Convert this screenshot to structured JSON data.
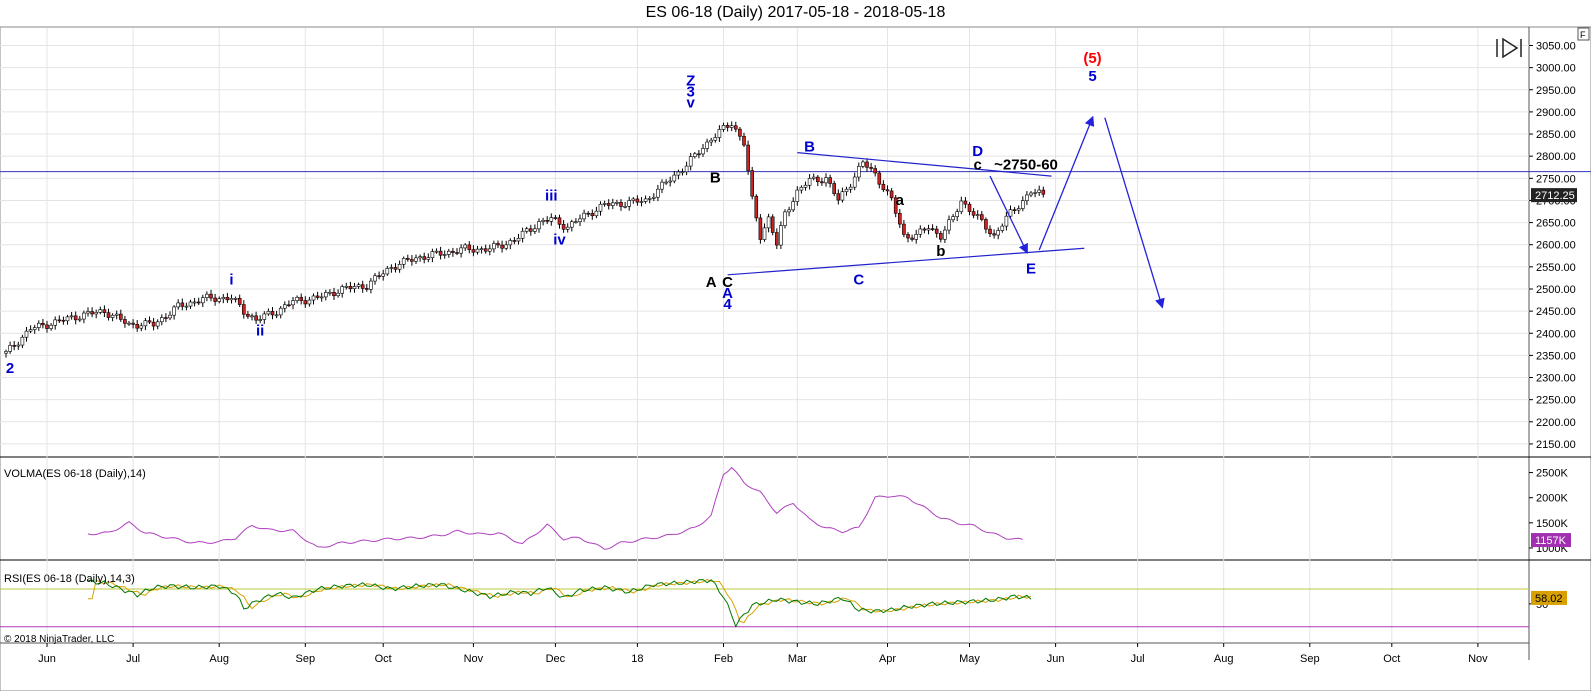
{
  "chart_data": [
    {
      "type": "candlestick",
      "title": "ES 06-18 (Daily)  2017-05-18 - 2018-05-18",
      "ylim": [
        2125,
        3085
      ],
      "y_ticks": [
        2150,
        2200,
        2250,
        2300,
        2350,
        2400,
        2450,
        2500,
        2550,
        2600,
        2650,
        2700,
        2750,
        2800,
        2850,
        2900,
        2950,
        3000,
        3050
      ],
      "y_tick_labels": [
        "2150.00",
        "2200.00",
        "2250.00",
        "2300.00",
        "2350.00",
        "2400.00",
        "2450.00",
        "2500.00",
        "2550.00",
        "2600.00",
        "2650.00",
        "2700.00",
        "2750.00",
        "2800.00",
        "2850.00",
        "2900.00",
        "2950.00",
        "3000.00",
        "3050.00"
      ],
      "x_tick_labels": [
        "Jun",
        "Jul",
        "Aug",
        "Sep",
        "Oct",
        "Nov",
        "Dec",
        "18",
        "Feb",
        "Mar",
        "Apr",
        "May",
        "Jun",
        "Jul",
        "Aug",
        "Sep",
        "Oct",
        "Nov"
      ],
      "x_tick_day_index": [
        10,
        31,
        52,
        73,
        92,
        114,
        134,
        154,
        175,
        193,
        215,
        235,
        256,
        276,
        297,
        318,
        338,
        359
      ],
      "last_price_label": "2712.25",
      "horizontal_line": 2765,
      "close_path_anchors": [
        [
          0,
          2355
        ],
        [
          6,
          2410
        ],
        [
          12,
          2425
        ],
        [
          18,
          2440
        ],
        [
          24,
          2450
        ],
        [
          30,
          2420
        ],
        [
          36,
          2420
        ],
        [
          42,
          2460
        ],
        [
          48,
          2478
        ],
        [
          55,
          2480
        ],
        [
          58,
          2450
        ],
        [
          61,
          2430
        ],
        [
          66,
          2450
        ],
        [
          70,
          2472
        ],
        [
          76,
          2480
        ],
        [
          82,
          2500
        ],
        [
          88,
          2508
        ],
        [
          94,
          2550
        ],
        [
          100,
          2570
        ],
        [
          106,
          2580
        ],
        [
          112,
          2590
        ],
        [
          118,
          2590
        ],
        [
          124,
          2610
        ],
        [
          130,
          2650
        ],
        [
          133,
          2658
        ],
        [
          137,
          2640
        ],
        [
          141,
          2665
        ],
        [
          146,
          2690
        ],
        [
          152,
          2695
        ],
        [
          156,
          2700
        ],
        [
          161,
          2740
        ],
        [
          166,
          2780
        ],
        [
          172,
          2840
        ],
        [
          177,
          2875
        ],
        [
          180,
          2830
        ],
        [
          182,
          2700
        ],
        [
          184,
          2620
        ],
        [
          186,
          2660
        ],
        [
          188,
          2600
        ],
        [
          190,
          2670
        ],
        [
          193,
          2720
        ],
        [
          196,
          2745
        ],
        [
          200,
          2750
        ],
        [
          203,
          2700
        ],
        [
          206,
          2740
        ],
        [
          209,
          2785
        ],
        [
          212,
          2760
        ],
        [
          216,
          2700
        ],
        [
          219,
          2620
        ],
        [
          222,
          2620
        ],
        [
          225,
          2640
        ],
        [
          228,
          2620
        ],
        [
          231,
          2660
        ],
        [
          233,
          2700
        ],
        [
          236,
          2670
        ],
        [
          239,
          2640
        ],
        [
          241,
          2620
        ],
        [
          244,
          2660
        ],
        [
          247,
          2690
        ],
        [
          250,
          2720
        ],
        [
          253,
          2712
        ]
      ],
      "annotations": [
        {
          "text": "2",
          "day": 1,
          "price": 2310,
          "color": "#0000cc"
        },
        {
          "text": "i",
          "day": 55,
          "price": 2510,
          "color": "#0000cc"
        },
        {
          "text": "ii",
          "day": 62,
          "price": 2395,
          "color": "#0000cc"
        },
        {
          "text": "iii",
          "day": 133,
          "price": 2700,
          "color": "#0000cc"
        },
        {
          "text": "iv",
          "day": 135,
          "price": 2600,
          "color": "#0000cc"
        },
        {
          "text": "Z",
          "day": 167,
          "price": 2960,
          "color": "#0000cc"
        },
        {
          "text": "3",
          "day": 167,
          "price": 2935,
          "color": "#0000cc"
        },
        {
          "text": "v",
          "day": 167,
          "price": 2910,
          "color": "#0000cc"
        },
        {
          "text": "B",
          "day": 173,
          "price": 2740,
          "color": "#000000"
        },
        {
          "text": "A",
          "day": 172,
          "price": 2505,
          "color": "#000000"
        },
        {
          "text": "C",
          "day": 176,
          "price": 2505,
          "color": "#000000"
        },
        {
          "text": "A",
          "day": 176,
          "price": 2480,
          "color": "#0000cc"
        },
        {
          "text": "4",
          "day": 176,
          "price": 2455,
          "color": "#0000cc"
        },
        {
          "text": "B",
          "day": 196,
          "price": 2810,
          "color": "#0000cc"
        },
        {
          "text": "C",
          "day": 208,
          "price": 2510,
          "color": "#0000cc"
        },
        {
          "text": "a",
          "day": 218,
          "price": 2690,
          "color": "#000000"
        },
        {
          "text": "b",
          "day": 228,
          "price": 2575,
          "color": "#000000"
        },
        {
          "text": "D",
          "day": 237,
          "price": 2800,
          "color": "#0000cc"
        },
        {
          "text": "c",
          "day": 237,
          "price": 2770,
          "color": "#000000"
        },
        {
          "text": "~2750-60",
          "day": 241,
          "price": 2770,
          "color": "#000000"
        },
        {
          "text": "E",
          "day": 250,
          "price": 2535,
          "color": "#0000cc"
        },
        {
          "text": "(5)",
          "day": 265,
          "price": 3010,
          "color": "#ff0000"
        },
        {
          "text": "5",
          "day": 265,
          "price": 2970,
          "color": "#0000cc"
        }
      ],
      "trendlines": [
        {
          "from": [
            176,
            2532
          ],
          "to": [
            263,
            2592
          ]
        },
        {
          "from": [
            193,
            2808
          ],
          "to": [
            255,
            2755
          ]
        }
      ],
      "arrows": [
        {
          "from": [
            240,
            2755
          ],
          "to": [
            249,
            2583
          ]
        },
        {
          "from": [
            252,
            2588
          ],
          "to": [
            265,
            2887
          ]
        },
        {
          "from": [
            268,
            2887
          ],
          "to": [
            282,
            2460
          ]
        }
      ]
    },
    {
      "type": "line",
      "title": "VOLMA(ES 06-18 (Daily),14)",
      "ylim": [
        800,
        2750
      ],
      "y_ticks": [
        1000,
        1500,
        2000,
        2500
      ],
      "y_tick_labels": [
        "1000K",
        "1500K",
        "2000K",
        "2500K"
      ],
      "last_value_label": "1157K",
      "line_color": "#b040c0",
      "anchors": [
        [
          20,
          1280
        ],
        [
          25,
          1300
        ],
        [
          30,
          1500
        ],
        [
          34,
          1300
        ],
        [
          40,
          1200
        ],
        [
          46,
          1100
        ],
        [
          52,
          1120
        ],
        [
          56,
          1200
        ],
        [
          60,
          1450
        ],
        [
          64,
          1360
        ],
        [
          70,
          1340
        ],
        [
          76,
          1000
        ],
        [
          82,
          1100
        ],
        [
          88,
          1140
        ],
        [
          94,
          1180
        ],
        [
          100,
          1200
        ],
        [
          106,
          1250
        ],
        [
          110,
          1330
        ],
        [
          116,
          1270
        ],
        [
          120,
          1300
        ],
        [
          126,
          1080
        ],
        [
          132,
          1460
        ],
        [
          136,
          1180
        ],
        [
          140,
          1200
        ],
        [
          146,
          980
        ],
        [
          150,
          1100
        ],
        [
          156,
          1180
        ],
        [
          162,
          1250
        ],
        [
          168,
          1400
        ],
        [
          172,
          1640
        ],
        [
          175,
          2480
        ],
        [
          177,
          2600
        ],
        [
          180,
          2300
        ],
        [
          184,
          2100
        ],
        [
          188,
          1700
        ],
        [
          192,
          1900
        ],
        [
          196,
          1560
        ],
        [
          200,
          1400
        ],
        [
          204,
          1330
        ],
        [
          208,
          1400
        ],
        [
          212,
          2000
        ],
        [
          216,
          2040
        ],
        [
          220,
          2000
        ],
        [
          224,
          1800
        ],
        [
          228,
          1600
        ],
        [
          232,
          1500
        ],
        [
          236,
          1440
        ],
        [
          240,
          1300
        ],
        [
          244,
          1200
        ],
        [
          248,
          1157
        ]
      ]
    },
    {
      "type": "line",
      "title": "RSI(ES 06-18 (Daily),14,3)",
      "ylim": [
        0,
        105
      ],
      "y_ticks": [
        50
      ],
      "y_tick_labels": [
        "50"
      ],
      "last_value_label": "58.02",
      "overbought": 70,
      "oversold": 30,
      "line_color": "#007700",
      "signal_color": "#d8a000",
      "anchors": [
        [
          20,
          80
        ],
        [
          24,
          78
        ],
        [
          28,
          70
        ],
        [
          32,
          62
        ],
        [
          36,
          72
        ],
        [
          40,
          74
        ],
        [
          46,
          72
        ],
        [
          52,
          74
        ],
        [
          56,
          64
        ],
        [
          58,
          44
        ],
        [
          62,
          56
        ],
        [
          66,
          64
        ],
        [
          70,
          58
        ],
        [
          76,
          70
        ],
        [
          82,
          74
        ],
        [
          88,
          76
        ],
        [
          94,
          70
        ],
        [
          100,
          74
        ],
        [
          106,
          76
        ],
        [
          112,
          68
        ],
        [
          118,
          60
        ],
        [
          124,
          66
        ],
        [
          128,
          64
        ],
        [
          132,
          72
        ],
        [
          136,
          58
        ],
        [
          140,
          68
        ],
        [
          146,
          72
        ],
        [
          152,
          66
        ],
        [
          158,
          76
        ],
        [
          164,
          78
        ],
        [
          168,
          80
        ],
        [
          172,
          82
        ],
        [
          175,
          60
        ],
        [
          178,
          22
        ],
        [
          182,
          48
        ],
        [
          188,
          56
        ],
        [
          194,
          52
        ],
        [
          198,
          50
        ],
        [
          204,
          58
        ],
        [
          208,
          42
        ],
        [
          212,
          40
        ],
        [
          216,
          42
        ],
        [
          220,
          46
        ],
        [
          226,
          50
        ],
        [
          232,
          52
        ],
        [
          238,
          54
        ],
        [
          242,
          56
        ],
        [
          246,
          60
        ],
        [
          250,
          58
        ]
      ]
    }
  ],
  "copyright": "© 2018 NinjaTrader, LLC",
  "icons": {
    "playback": "skip-forward-icon",
    "corner": "F"
  }
}
